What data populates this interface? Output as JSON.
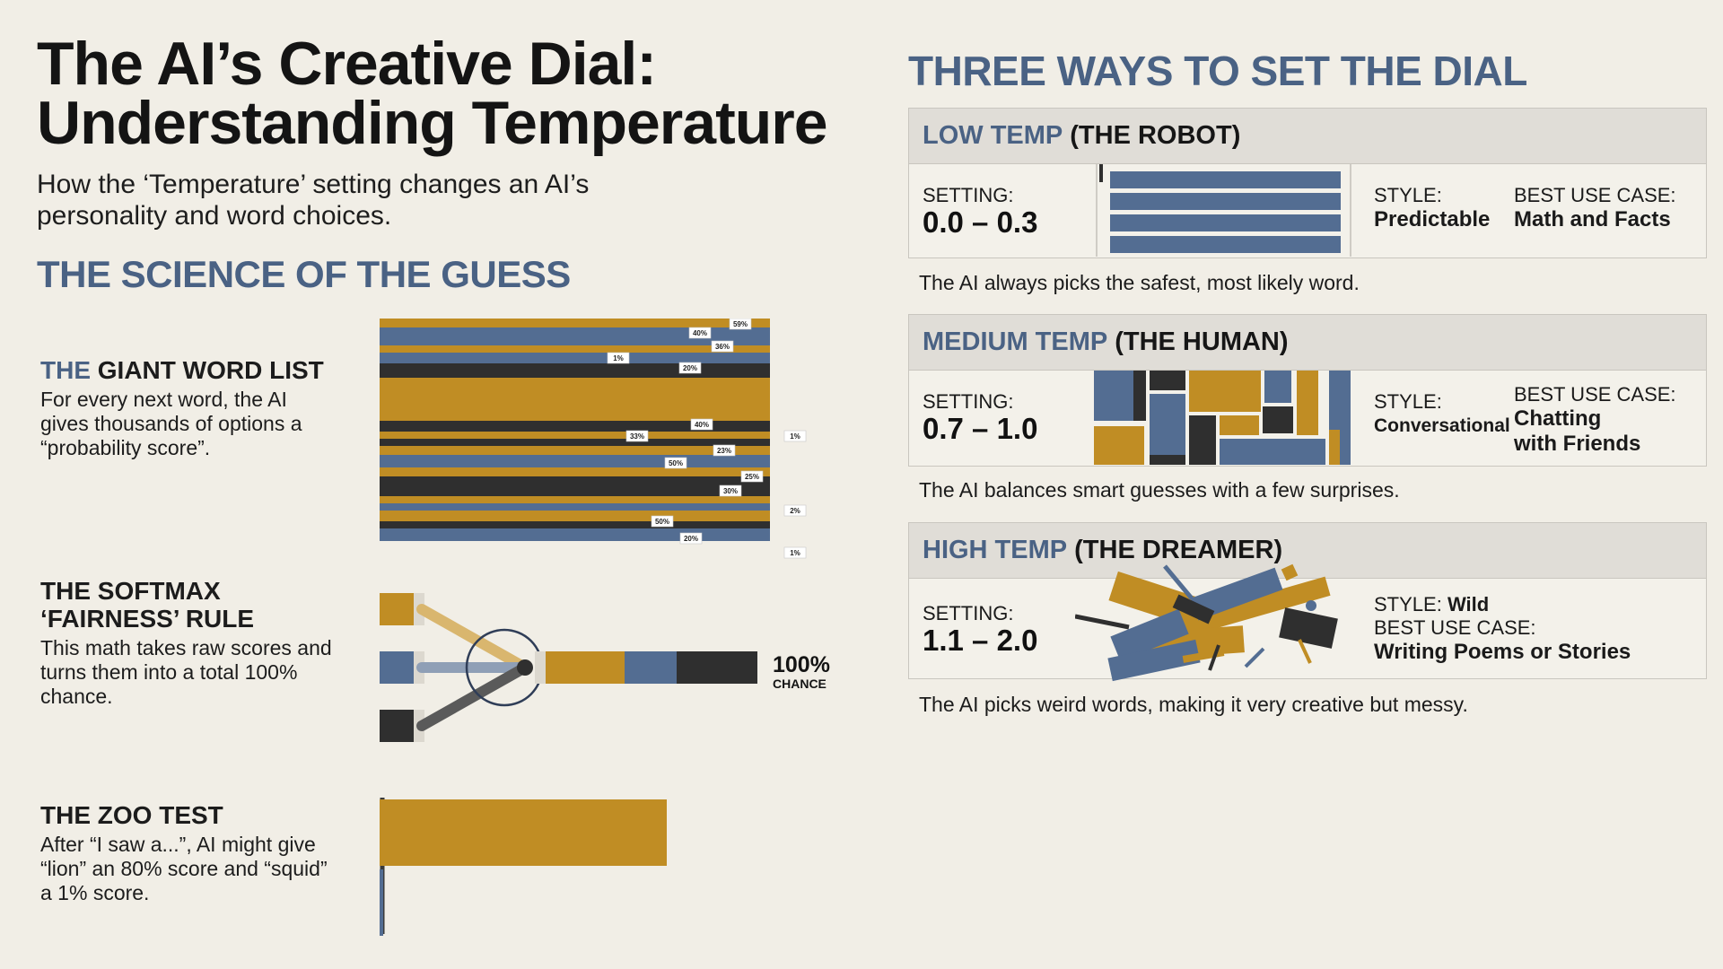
{
  "header": {
    "title_line1": "The AI’s Creative Dial:",
    "title_line2": "Understanding Temperature",
    "subtitle": "How the ‘Temperature’ setting changes an AI’s personality and word choices."
  },
  "science": {
    "heading": "THE SCIENCE OF THE GUESS",
    "word_list": {
      "title_accent": "THE",
      "title_rest": "GIANT WORD LIST",
      "desc": "For every next word, the AI gives thousands of options a “probability score”.",
      "labels": [
        "59%",
        "40%",
        "36%",
        "1%",
        "20%",
        "40%",
        "33%",
        "23%",
        "1%",
        "50%",
        "25%",
        "30%",
        "2%",
        "50%",
        "20%",
        "1%"
      ]
    },
    "softmax": {
      "title_line1": "THE SOFTMAX",
      "title_line2": "‘FAIRNESS’ RULE",
      "desc": "This math takes raw scores and turns them into a total 100% chance.",
      "chance_value": "100%",
      "chance_label": "CHANCE"
    },
    "zoo": {
      "title": "THE ZOO TEST",
      "desc": "After “I saw a...”, AI might give “lion” an 80% score and “squid” a 1% score.",
      "lion_score": 80,
      "squid_score": 1
    }
  },
  "ways": {
    "heading": "THREE WAYS TO SET THE DIAL",
    "setting_label": "SETTING:",
    "style_label": "STYLE:",
    "use_label": "BEST USE CASE:",
    "low": {
      "temp": "LOW TEMP",
      "name": "(THE ROBOT)",
      "setting": "0.0 – 0.3",
      "style": "Predictable",
      "use_case": "Math and Facts",
      "caption": "The AI always picks the safest, most likely word."
    },
    "medium": {
      "temp": "MEDIUM TEMP",
      "name": "(THE HUMAN)",
      "setting": "0.7 – 1.0",
      "style": "Conversational",
      "use_case_line1": "Chatting",
      "use_case_line2": "with Friends",
      "caption": "The AI balances smart guesses with a few surprises."
    },
    "high": {
      "temp": "HIGH TEMP",
      "name": "(THE DREAMER)",
      "setting": "1.1 – 2.0",
      "style": "Wild",
      "use_case": "Writing Poems or Stories",
      "caption": "The AI picks weird words, making it very creative but messy."
    }
  },
  "colors": {
    "gold": "#c08d24",
    "slate": "#536d92",
    "charcoal": "#2f2f2f",
    "accent_text": "#4a6284",
    "background": "#f1eee6"
  }
}
